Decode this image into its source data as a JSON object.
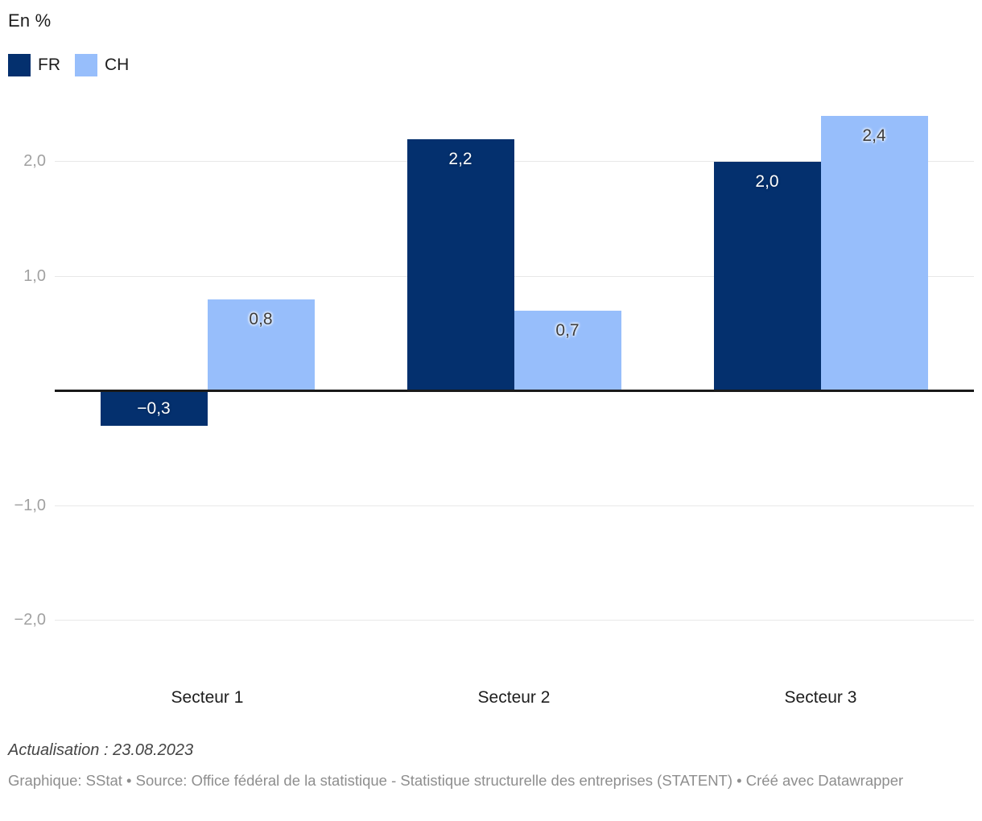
{
  "chart_data": {
    "type": "bar",
    "title": "En %",
    "categories": [
      "Secteur 1",
      "Secteur 2",
      "Secteur 3"
    ],
    "series": [
      {
        "name": "FR",
        "color": "#04306e",
        "values": [
          -0.3,
          2.2,
          2.0
        ],
        "labels": [
          "−0,3",
          "2,2",
          "2,0"
        ]
      },
      {
        "name": "CH",
        "color": "#97befb",
        "values": [
          0.8,
          0.7,
          2.4
        ],
        "labels": [
          "0,8",
          "0,7",
          "2,4"
        ]
      }
    ],
    "yticks": [
      {
        "v": 2,
        "label": "2,0"
      },
      {
        "v": 1,
        "label": "1,0"
      },
      {
        "v": -1,
        "label": "−1,0"
      },
      {
        "v": -2,
        "label": "−2,0"
      }
    ],
    "ylim": [
      -2.5,
      2.45
    ],
    "xlabel": "",
    "ylabel": "En %",
    "grid": true,
    "legend_position": "top-left",
    "baseline_value": 0
  },
  "colors": {
    "fr_bar": "#04306e",
    "ch_bar": "#97befb",
    "gridline": "#e8e8e8",
    "zero_line": "#1a1a1a",
    "tick_text": "#a1a1a1",
    "text": "#1d1d1d",
    "update_text": "#454545",
    "byline_text": "#8e8e8e"
  },
  "footer": {
    "update": "Actualisation : 23.08.2023",
    "byline_text": "Graphique: SStat • Source: Office fédéral de la statistique - Statistique structurelle des entreprises (STATENT) • Créé avec ",
    "byline_link": "Datawrapper"
  }
}
